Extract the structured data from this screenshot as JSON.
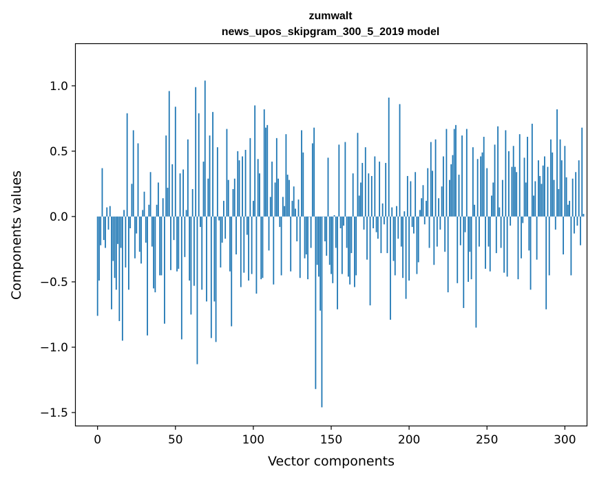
{
  "chart_data": {
    "type": "bar",
    "title_line1": "zumwalt",
    "title_line2": "news_upos_skipgram_300_5_2019 model",
    "xlabel": "Vector components",
    "ylabel": "Components values",
    "xlim": [
      -14,
      314
    ],
    "ylim": [
      -1.6,
      1.32
    ],
    "bar_color": "#1f77b4",
    "grid": false,
    "x_ticks": [
      0,
      50,
      100,
      150,
      200,
      250,
      300
    ],
    "x_tick_labels": [
      "0",
      "50",
      "100",
      "150",
      "200",
      "250",
      "300"
    ],
    "y_ticks": [
      1.0,
      0.5,
      0.0,
      -0.5,
      -1.0,
      -1.5
    ],
    "y_tick_labels": [
      "1.0",
      "0.5",
      "0.0",
      "−0.5",
      "−1.0",
      "−1.5"
    ],
    "values": [
      -0.76,
      -0.49,
      -0.22,
      0.37,
      -0.18,
      -0.24,
      0.07,
      -0.1,
      0.08,
      -0.71,
      -0.34,
      -0.47,
      -0.56,
      -0.21,
      -0.8,
      -0.24,
      -0.95,
      0.05,
      -0.39,
      0.79,
      -0.56,
      -0.09,
      0.25,
      0.66,
      -0.32,
      -0.13,
      0.56,
      -0.27,
      -0.36,
      0.05,
      0.19,
      -0.2,
      -0.91,
      0.09,
      0.34,
      -0.23,
      -0.55,
      -0.58,
      0.09,
      0.26,
      -0.45,
      -0.45,
      0.14,
      -0.82,
      0.62,
      0.22,
      0.96,
      -0.41,
      0.4,
      -0.18,
      0.84,
      -0.42,
      -0.4,
      0.33,
      -0.94,
      0.36,
      -0.31,
      0.05,
      0.59,
      -0.49,
      -0.75,
      0.21,
      -0.53,
      0.99,
      -1.13,
      0.79,
      -0.08,
      -0.56,
      0.42,
      1.04,
      -0.65,
      0.29,
      0.62,
      -0.93,
      0.8,
      -0.65,
      -0.96,
      0.53,
      -0.03,
      -0.39,
      -0.2,
      0.12,
      -0.17,
      0.67,
      0.28,
      -0.42,
      -0.84,
      0.21,
      0.29,
      -0.29,
      0.5,
      0.43,
      -0.54,
      0.46,
      -0.43,
      0.51,
      -0.14,
      -0.49,
      0.6,
      -0.44,
      0.12,
      0.85,
      -0.59,
      0.44,
      0.33,
      -0.48,
      -0.47,
      0.82,
      0.68,
      0.7,
      -0.26,
      0.15,
      0.42,
      -0.52,
      0.26,
      0.6,
      0.29,
      -0.08,
      -0.45,
      0.15,
      0.08,
      0.63,
      0.32,
      0.28,
      -0.42,
      0.12,
      0.23,
      0.06,
      -0.19,
      0.13,
      -0.47,
      0.66,
      0.49,
      -0.32,
      -0.29,
      -0.48,
      0.0,
      -0.24,
      0.56,
      0.68,
      -1.32,
      -0.37,
      -0.46,
      -0.72,
      -1.46,
      0.0,
      -0.19,
      -0.3,
      0.45,
      -0.37,
      -0.44,
      -0.51,
      0.01,
      -0.24,
      -0.71,
      0.55,
      -0.09,
      -0.44,
      -0.07,
      0.57,
      -0.24,
      -0.46,
      -0.52,
      -0.28,
      0.33,
      -0.54,
      -0.45,
      0.64,
      0.16,
      0.26,
      0.41,
      -0.1,
      0.53,
      -0.33,
      0.33,
      -0.68,
      0.31,
      -0.09,
      0.46,
      -0.12,
      -0.17,
      0.42,
      -0.28,
      0.1,
      -0.06,
      0.41,
      -0.28,
      0.91,
      -0.79,
      0.07,
      -0.34,
      -0.45,
      0.08,
      -0.17,
      0.86,
      -0.23,
      -0.47,
      0.04,
      -0.63,
      0.31,
      -0.49,
      0.27,
      -0.08,
      -0.13,
      0.34,
      -0.44,
      -0.35,
      0.05,
      0.14,
      0.24,
      -0.06,
      0.12,
      0.37,
      -0.24,
      0.57,
      0.35,
      -0.37,
      0.59,
      -0.23,
      0.14,
      -0.1,
      0.23,
      0.46,
      -0.27,
      0.67,
      -0.58,
      0.28,
      0.4,
      0.47,
      0.67,
      0.7,
      -0.51,
      0.32,
      -0.22,
      0.62,
      -0.7,
      -0.12,
      0.67,
      -0.5,
      -0.27,
      -0.48,
      0.53,
      0.09,
      -0.85,
      0.44,
      -0.23,
      0.46,
      0.49,
      0.61,
      -0.4,
      0.37,
      -0.23,
      -0.42,
      0.16,
      0.26,
      0.55,
      -0.28,
      0.69,
      0.07,
      -0.24,
      0.28,
      -0.43,
      0.66,
      -0.46,
      0.5,
      -0.07,
      0.38,
      0.54,
      0.38,
      0.34,
      -0.48,
      0.63,
      -0.32,
      -0.05,
      0.45,
      0.26,
      0.61,
      -0.26,
      -0.56,
      0.71,
      0.16,
      0.27,
      -0.33,
      0.43,
      0.31,
      0.25,
      0.39,
      0.46,
      -0.71,
      0.38,
      -0.45,
      0.59,
      0.49,
      0.28,
      -0.1,
      0.82,
      0.21,
      0.59,
      0.43,
      -0.29,
      0.54,
      0.3,
      0.09,
      0.12,
      -0.45,
      0.29,
      -0.13,
      0.34,
      -0.07,
      0.43,
      -0.22,
      0.68,
      0.02
    ]
  }
}
